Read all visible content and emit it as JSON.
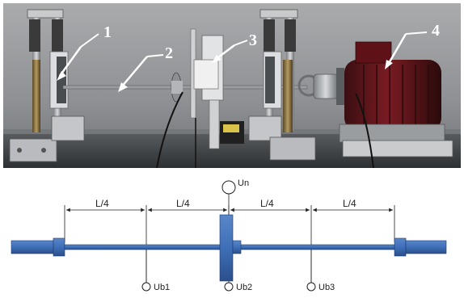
{
  "photo": {
    "callouts": [
      "1",
      "2",
      "3",
      "4"
    ]
  },
  "diagram": {
    "segments": [
      "L/4",
      "L/4",
      "L/4",
      "L/4"
    ],
    "top_node": "Un",
    "bottom_nodes": [
      "Ub1",
      "Ub2",
      "Ub3"
    ]
  }
}
